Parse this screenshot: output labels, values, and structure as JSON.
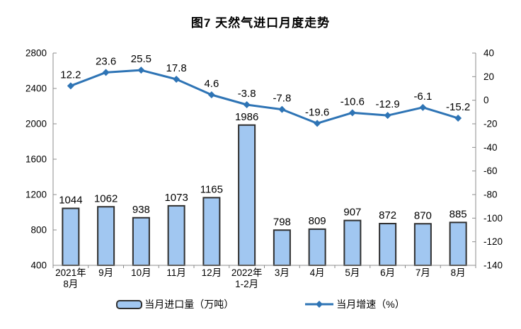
{
  "title": "图7 天然气进口月度走势",
  "chart_data": {
    "type": "combo-bar-line",
    "title": "图7 天然气进口月度走势",
    "categories": [
      "2021年\n8月",
      "9月",
      "10月",
      "11月",
      "12月",
      "2022年\n1-2月",
      "3月",
      "4月",
      "5月",
      "6月",
      "7月",
      "8月"
    ],
    "series": [
      {
        "name": "当月进口量（万吨）",
        "type": "bar",
        "axis": "left",
        "values": [
          1044,
          1062,
          938,
          1073,
          1165,
          1986,
          798,
          809,
          907,
          872,
          870,
          885
        ],
        "fill": "#A1C7F1",
        "stroke": "#2F2F2F"
      },
      {
        "name": "当月增速（%）",
        "type": "line",
        "axis": "right",
        "marker": "diamond",
        "values": [
          12.2,
          23.6,
          25.5,
          17.8,
          4.6,
          -3.8,
          -7.8,
          -19.6,
          -10.6,
          -12.9,
          -6.1,
          -15.2
        ],
        "color": "#2E74B5"
      }
    ],
    "left_axis": {
      "min": 400,
      "max": 2800,
      "ticks": [
        400,
        800,
        1200,
        1600,
        2000,
        2400,
        2800
      ]
    },
    "right_axis": {
      "min": -140,
      "max": 40,
      "ticks": [
        40,
        20,
        0,
        -20,
        -40,
        -60,
        -80,
        -100,
        -120,
        -140
      ]
    },
    "data_labels": true,
    "grid": false,
    "legend_position": "bottom",
    "axis_color": "#8C8C8C",
    "label_color": "#000000"
  }
}
